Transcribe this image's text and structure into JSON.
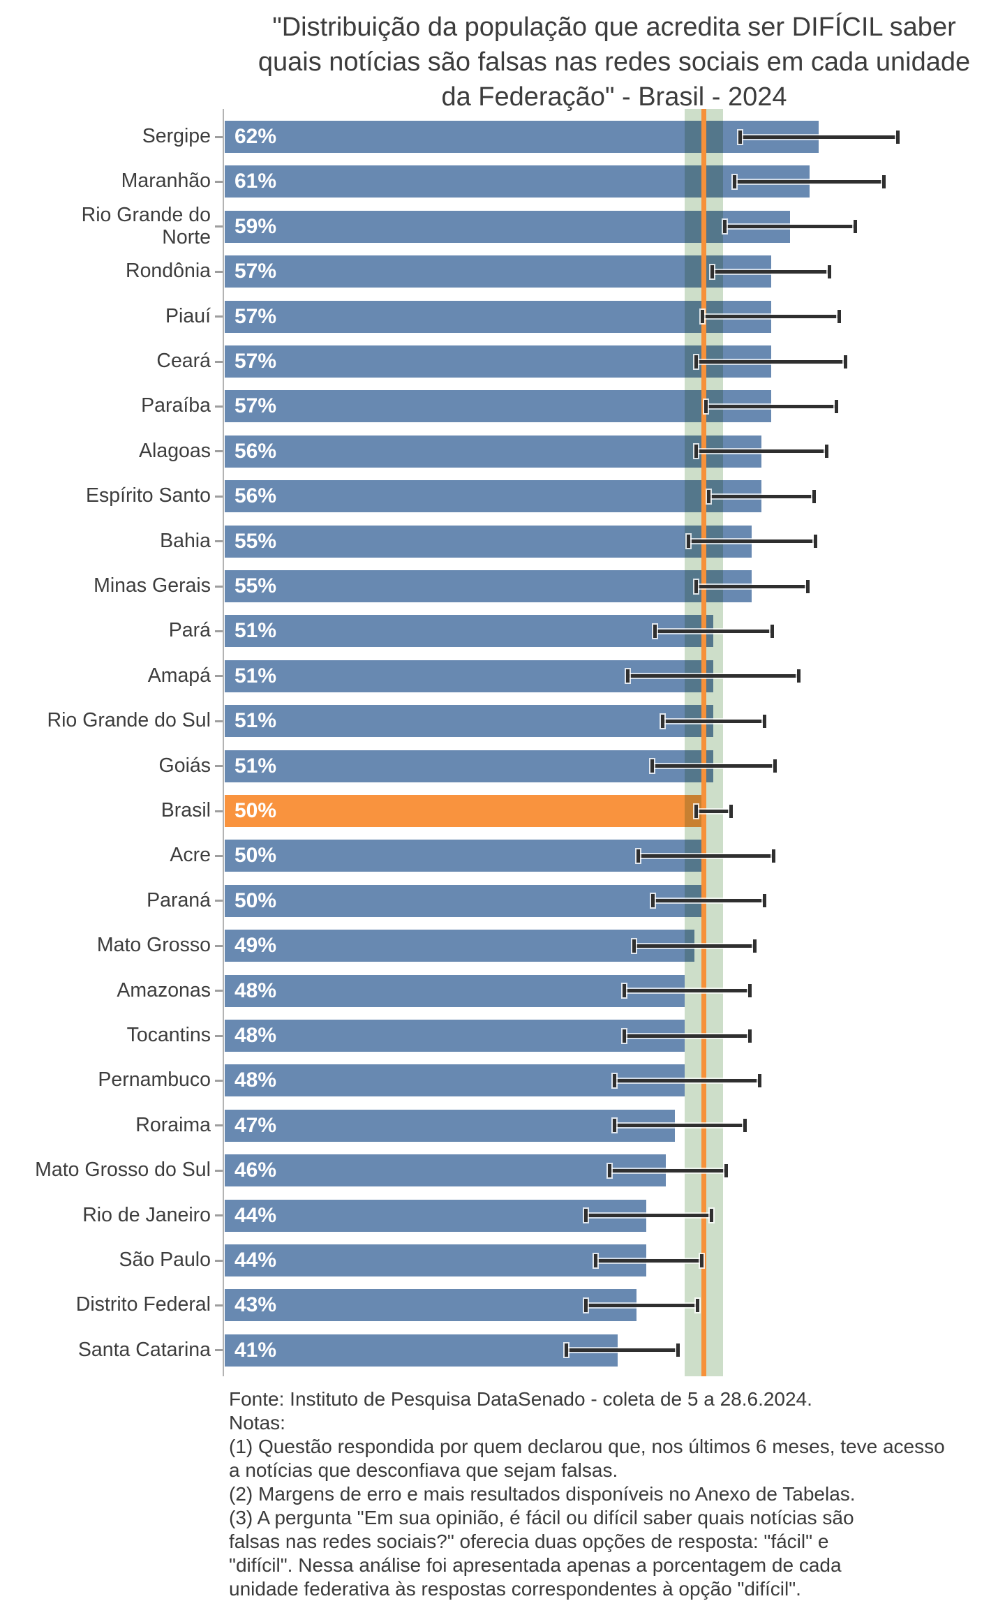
{
  "chart_data": {
    "type": "bar",
    "orientation": "horizontal",
    "title": "\"Distribuição da população que acredita ser DIFÍCIL saber quais notícias são falsas nas redes sociais em cada unidade da Federação\" - Brasil - 2024",
    "unit": "%",
    "xlim": [
      0,
      81
    ],
    "grid": false,
    "legend": false,
    "bar_color": "#6889b1",
    "highlight_color": "#f9933e",
    "error_bar_color": "#2f2f2f",
    "reference_line": {
      "value": 50,
      "color": "#f6913a"
    },
    "reference_band": {
      "from": 48,
      "to": 52,
      "color": "#cddec9"
    },
    "categories": [
      "Sergipe",
      "Maranhão",
      "Rio Grande do Norte",
      "Rondônia",
      "Piauí",
      "Ceará",
      "Paraíba",
      "Alagoas",
      "Espírito Santo",
      "Bahia",
      "Minas Gerais",
      "Pará",
      "Amapá",
      "Rio Grande do Sul",
      "Goiás",
      "Brasil",
      "Acre",
      "Paraná",
      "Mato Grosso",
      "Amazonas",
      "Tocantins",
      "Pernambuco",
      "Roraima",
      "Mato Grosso do Sul",
      "Rio de Janeiro",
      "São Paulo",
      "Distrito Federal",
      "Santa Catarina"
    ],
    "values": [
      62,
      61,
      59,
      57,
      57,
      57,
      57,
      56,
      56,
      55,
      55,
      51,
      51,
      51,
      51,
      50,
      50,
      50,
      49,
      48,
      48,
      48,
      47,
      46,
      44,
      44,
      43,
      41
    ],
    "rows": [
      {
        "label": "Sergipe",
        "value": 62,
        "display": "62%",
        "err_low": 53.6,
        "err_high": 70.4,
        "highlight": false
      },
      {
        "label": "Maranhão",
        "value": 61,
        "display": "61%",
        "err_low": 53.0,
        "err_high": 69.0,
        "highlight": false
      },
      {
        "label": "Rio Grande do\nNorte",
        "value": 59,
        "display": "59%",
        "err_low": 52.0,
        "err_high": 66.0,
        "highlight": false
      },
      {
        "label": "Rondônia",
        "value": 57,
        "display": "57%",
        "err_low": 50.7,
        "err_high": 63.3,
        "highlight": false
      },
      {
        "label": "Piauí",
        "value": 57,
        "display": "57%",
        "err_low": 49.7,
        "err_high": 64.3,
        "highlight": false
      },
      {
        "label": "Ceará",
        "value": 57,
        "display": "57%",
        "err_low": 49.0,
        "err_high": 65.0,
        "highlight": false
      },
      {
        "label": "Paraíba",
        "value": 57,
        "display": "57%",
        "err_low": 50.0,
        "err_high": 64.0,
        "highlight": false
      },
      {
        "label": "Alagoas",
        "value": 56,
        "display": "56%",
        "err_low": 49.0,
        "err_high": 63.0,
        "highlight": false
      },
      {
        "label": "Espírito Santo",
        "value": 56,
        "display": "56%",
        "err_low": 50.3,
        "err_high": 61.7,
        "highlight": false
      },
      {
        "label": "Bahia",
        "value": 55,
        "display": "55%",
        "err_low": 48.2,
        "err_high": 61.8,
        "highlight": false
      },
      {
        "label": "Minas Gerais",
        "value": 55,
        "display": "55%",
        "err_low": 49.0,
        "err_high": 61.0,
        "highlight": false
      },
      {
        "label": "Pará",
        "value": 51,
        "display": "51%",
        "err_low": 44.7,
        "err_high": 57.3,
        "highlight": false
      },
      {
        "label": "Amapá",
        "value": 51,
        "display": "51%",
        "err_low": 41.9,
        "err_high": 60.1,
        "highlight": false
      },
      {
        "label": "Rio Grande do Sul",
        "value": 51,
        "display": "51%",
        "err_low": 45.5,
        "err_high": 56.5,
        "highlight": false
      },
      {
        "label": "Goiás",
        "value": 51,
        "display": "51%",
        "err_low": 44.4,
        "err_high": 57.6,
        "highlight": false
      },
      {
        "label": "Brasil",
        "value": 50,
        "display": "50%",
        "err_low": 49.0,
        "err_high": 53.0,
        "highlight": true
      },
      {
        "label": "Acre",
        "value": 50,
        "display": "50%",
        "err_low": 43.0,
        "err_high": 57.5,
        "highlight": false
      },
      {
        "label": "Paraná",
        "value": 50,
        "display": "50%",
        "err_low": 44.5,
        "err_high": 56.5,
        "highlight": false
      },
      {
        "label": "Mato Grosso",
        "value": 49,
        "display": "49%",
        "err_low": 42.5,
        "err_high": 55.5,
        "highlight": false
      },
      {
        "label": "Amazonas",
        "value": 48,
        "display": "48%",
        "err_low": 41.5,
        "err_high": 55.0,
        "highlight": false
      },
      {
        "label": "Tocantins",
        "value": 48,
        "display": "48%",
        "err_low": 41.5,
        "err_high": 55.0,
        "highlight": false
      },
      {
        "label": "Pernambuco",
        "value": 48,
        "display": "48%",
        "err_low": 40.5,
        "err_high": 56.0,
        "highlight": false
      },
      {
        "label": "Roraima",
        "value": 47,
        "display": "47%",
        "err_low": 40.5,
        "err_high": 54.5,
        "highlight": false
      },
      {
        "label": "Mato Grosso do Sul",
        "value": 46,
        "display": "46%",
        "err_low": 40.0,
        "err_high": 52.5,
        "highlight": false
      },
      {
        "label": "Rio de Janeiro",
        "value": 44,
        "display": "44%",
        "err_low": 37.5,
        "err_high": 51.0,
        "highlight": false
      },
      {
        "label": "São Paulo",
        "value": 44,
        "display": "44%",
        "err_low": 38.5,
        "err_high": 50.0,
        "highlight": false
      },
      {
        "label": "Distrito Federal",
        "value": 43,
        "display": "43%",
        "err_low": 37.5,
        "err_high": 49.5,
        "highlight": false
      },
      {
        "label": "Santa Catarina",
        "value": 41,
        "display": "41%",
        "err_low": 35.5,
        "err_high": 47.5,
        "highlight": false
      }
    ]
  },
  "source_notes": {
    "lines": [
      "Fonte: Instituto de Pesquisa DataSenado - coleta de 5 a 28.6.2024.",
      "Notas:",
      "(1) Questão respondida por quem declarou que, nos últimos 6 meses, teve acesso",
      "a notícias que desconfiava que sejam falsas.",
      "(2) Margens de erro e mais resultados disponíveis no Anexo de Tabelas.",
      "(3) A pergunta \"Em sua opinião, é fácil ou difícil saber quais notícias são",
      "falsas nas redes sociais?\" oferecia duas opções de resposta: \"fácil\" e",
      "\"difícil\". Nessa análise foi apresentada apenas a porcentagem de cada",
      "unidade federativa às respostas correspondentes à opção \"difícil\"."
    ]
  }
}
